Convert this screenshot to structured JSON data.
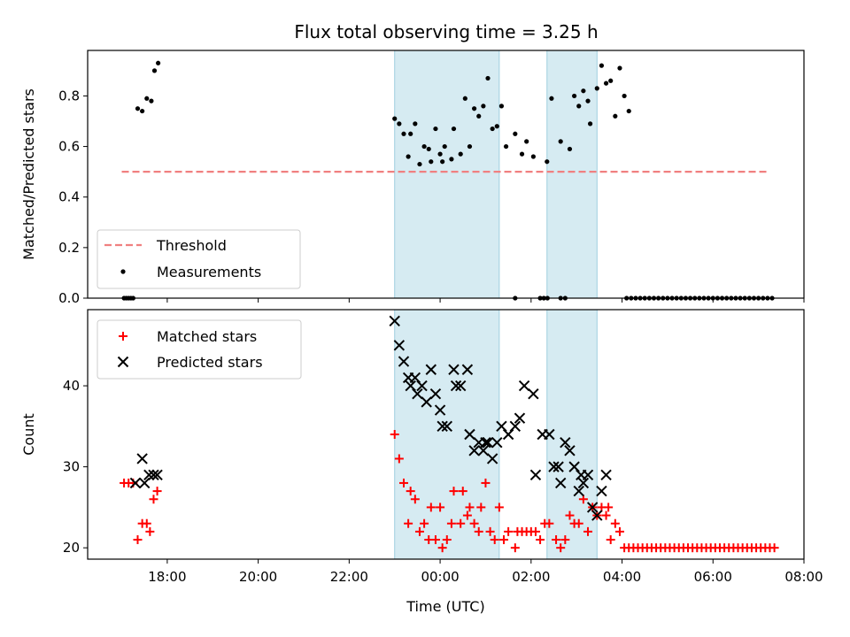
{
  "chart_data": [
    {
      "type": "scatter",
      "title": "Flux total observing time = 3.25 h",
      "ylabel": "Matched/Predicted stars",
      "xlabel": "",
      "ylim": [
        0,
        0.98
      ],
      "yticks": [
        0.0,
        0.2,
        0.4,
        0.6,
        0.8
      ],
      "ytick_labels": [
        "0.0",
        "0.2",
        "0.4",
        "0.6",
        "0.8"
      ],
      "legend_position": "lower-left",
      "threshold": {
        "name": "Threshold",
        "y": 0.5,
        "x_start": 17.0,
        "x_end": 31.25,
        "color": "#f08080"
      },
      "series": [
        {
          "name": "Measurements",
          "color": "#000000",
          "points": [
            [
              17.05,
              0.0
            ],
            [
              17.1,
              0.0
            ],
            [
              17.15,
              0.0
            ],
            [
              17.2,
              0.0
            ],
            [
              17.25,
              0.0
            ],
            [
              17.35,
              0.75
            ],
            [
              17.45,
              0.74
            ],
            [
              17.55,
              0.79
            ],
            [
              17.65,
              0.78
            ],
            [
              17.72,
              0.9
            ],
            [
              17.8,
              0.93
            ],
            [
              23.0,
              0.71
            ],
            [
              23.1,
              0.69
            ],
            [
              23.2,
              0.65
            ],
            [
              23.3,
              0.56
            ],
            [
              23.35,
              0.65
            ],
            [
              23.45,
              0.69
            ],
            [
              23.55,
              0.53
            ],
            [
              23.65,
              0.6
            ],
            [
              23.75,
              0.59
            ],
            [
              23.8,
              0.54
            ],
            [
              23.9,
              0.67
            ],
            [
              24.0,
              0.57
            ],
            [
              24.05,
              0.54
            ],
            [
              24.1,
              0.6
            ],
            [
              24.25,
              0.55
            ],
            [
              24.3,
              0.67
            ],
            [
              24.45,
              0.57
            ],
            [
              24.55,
              0.79
            ],
            [
              24.65,
              0.6
            ],
            [
              24.75,
              0.75
            ],
            [
              24.85,
              0.72
            ],
            [
              24.95,
              0.76
            ],
            [
              25.05,
              0.87
            ],
            [
              25.15,
              0.67
            ],
            [
              25.25,
              0.68
            ],
            [
              25.35,
              0.76
            ],
            [
              25.45,
              0.6
            ],
            [
              25.65,
              0.65
            ],
            [
              25.8,
              0.57
            ],
            [
              25.9,
              0.62
            ],
            [
              26.05,
              0.56
            ],
            [
              26.35,
              0.54
            ],
            [
              26.45,
              0.79
            ],
            [
              26.65,
              0.62
            ],
            [
              26.85,
              0.59
            ],
            [
              26.95,
              0.8
            ],
            [
              27.05,
              0.76
            ],
            [
              27.15,
              0.82
            ],
            [
              27.25,
              0.78
            ],
            [
              27.3,
              0.69
            ],
            [
              27.45,
              0.83
            ],
            [
              27.55,
              0.92
            ],
            [
              27.65,
              0.85
            ],
            [
              27.75,
              0.86
            ],
            [
              27.85,
              0.72
            ],
            [
              27.95,
              0.91
            ],
            [
              28.05,
              0.8
            ],
            [
              28.15,
              0.74
            ],
            [
              25.65,
              0.0
            ],
            [
              26.2,
              0.0
            ],
            [
              26.28,
              0.0
            ],
            [
              26.36,
              0.0
            ],
            [
              26.65,
              0.0
            ],
            [
              26.75,
              0.0
            ],
            [
              28.1,
              0.0
            ],
            [
              28.2,
              0.0
            ],
            [
              28.3,
              0.0
            ],
            [
              28.4,
              0.0
            ],
            [
              28.5,
              0.0
            ],
            [
              28.6,
              0.0
            ],
            [
              28.7,
              0.0
            ],
            [
              28.8,
              0.0
            ],
            [
              28.9,
              0.0
            ],
            [
              29.0,
              0.0
            ],
            [
              29.1,
              0.0
            ],
            [
              29.2,
              0.0
            ],
            [
              29.3,
              0.0
            ],
            [
              29.4,
              0.0
            ],
            [
              29.5,
              0.0
            ],
            [
              29.6,
              0.0
            ],
            [
              29.7,
              0.0
            ],
            [
              29.8,
              0.0
            ],
            [
              29.9,
              0.0
            ],
            [
              30.0,
              0.0
            ],
            [
              30.1,
              0.0
            ],
            [
              30.2,
              0.0
            ],
            [
              30.3,
              0.0
            ],
            [
              30.4,
              0.0
            ],
            [
              30.5,
              0.0
            ],
            [
              30.6,
              0.0
            ],
            [
              30.7,
              0.0
            ],
            [
              30.8,
              0.0
            ],
            [
              30.9,
              0.0
            ],
            [
              31.0,
              0.0
            ],
            [
              31.1,
              0.0
            ],
            [
              31.2,
              0.0
            ],
            [
              31.3,
              0.0
            ]
          ]
        }
      ],
      "shaded_spans": [
        [
          23.0,
          25.3
        ],
        [
          26.35,
          27.45
        ]
      ]
    },
    {
      "type": "scatter",
      "title": "",
      "ylabel": "Count",
      "xlabel": "Time (UTC)",
      "ylim": [
        18.6,
        49.4
      ],
      "yticks": [
        20,
        30,
        40
      ],
      "ytick_labels": [
        "20",
        "30",
        "40"
      ],
      "xlim": [
        16.25,
        32.0
      ],
      "xticks": [
        18,
        20,
        22,
        24,
        26,
        28,
        30,
        32
      ],
      "xtick_labels": [
        "18:00",
        "20:00",
        "22:00",
        "00:00",
        "02:00",
        "04:00",
        "06:00",
        "08:00"
      ],
      "legend_position": "upper-left",
      "series": [
        {
          "name": "Matched stars",
          "marker": "plus",
          "color": "#ff0000",
          "points": [
            [
              17.05,
              28
            ],
            [
              17.15,
              28
            ],
            [
              17.25,
              28
            ],
            [
              17.35,
              21
            ],
            [
              17.45,
              23
            ],
            [
              17.55,
              23
            ],
            [
              17.62,
              22
            ],
            [
              17.7,
              26
            ],
            [
              17.78,
              27
            ],
            [
              23.0,
              34
            ],
            [
              23.1,
              31
            ],
            [
              23.2,
              28
            ],
            [
              23.3,
              23
            ],
            [
              23.35,
              27
            ],
            [
              23.45,
              26
            ],
            [
              23.55,
              22
            ],
            [
              23.65,
              23
            ],
            [
              23.75,
              21
            ],
            [
              23.8,
              25
            ],
            [
              23.9,
              21
            ],
            [
              24.0,
              25
            ],
            [
              24.05,
              20
            ],
            [
              24.15,
              21
            ],
            [
              24.25,
              23
            ],
            [
              24.3,
              27
            ],
            [
              24.45,
              23
            ],
            [
              24.5,
              27
            ],
            [
              24.6,
              24
            ],
            [
              24.65,
              25
            ],
            [
              24.75,
              23
            ],
            [
              24.85,
              22
            ],
            [
              24.9,
              25
            ],
            [
              25.0,
              28
            ],
            [
              25.1,
              22
            ],
            [
              25.2,
              21
            ],
            [
              25.3,
              25
            ],
            [
              25.4,
              21
            ],
            [
              25.5,
              22
            ],
            [
              25.65,
              20
            ],
            [
              25.7,
              22
            ],
            [
              25.8,
              22
            ],
            [
              25.9,
              22
            ],
            [
              26.0,
              22
            ],
            [
              26.1,
              22
            ],
            [
              26.2,
              21
            ],
            [
              26.3,
              23
            ],
            [
              26.4,
              23
            ],
            [
              26.55,
              21
            ],
            [
              26.65,
              20
            ],
            [
              26.75,
              21
            ],
            [
              26.85,
              24
            ],
            [
              26.95,
              23
            ],
            [
              27.05,
              23
            ],
            [
              27.15,
              26
            ],
            [
              27.25,
              22
            ],
            [
              27.35,
              25
            ],
            [
              27.45,
              24
            ],
            [
              27.55,
              25
            ],
            [
              27.65,
              24
            ],
            [
              27.7,
              25
            ],
            [
              27.75,
              21
            ],
            [
              27.85,
              23
            ],
            [
              27.95,
              22
            ],
            [
              28.05,
              20
            ],
            [
              28.15,
              20
            ],
            [
              28.25,
              20
            ],
            [
              28.35,
              20
            ],
            [
              28.45,
              20
            ],
            [
              28.55,
              20
            ],
            [
              28.65,
              20
            ],
            [
              28.75,
              20
            ],
            [
              28.85,
              20
            ],
            [
              28.95,
              20
            ],
            [
              29.05,
              20
            ],
            [
              29.15,
              20
            ],
            [
              29.25,
              20
            ],
            [
              29.35,
              20
            ],
            [
              29.45,
              20
            ],
            [
              29.55,
              20
            ],
            [
              29.65,
              20
            ],
            [
              29.75,
              20
            ],
            [
              29.85,
              20
            ],
            [
              29.95,
              20
            ],
            [
              30.05,
              20
            ],
            [
              30.15,
              20
            ],
            [
              30.25,
              20
            ],
            [
              30.35,
              20
            ],
            [
              30.45,
              20
            ],
            [
              30.55,
              20
            ],
            [
              30.65,
              20
            ],
            [
              30.75,
              20
            ],
            [
              30.85,
              20
            ],
            [
              30.95,
              20
            ],
            [
              31.05,
              20
            ],
            [
              31.15,
              20
            ],
            [
              31.25,
              20
            ],
            [
              31.35,
              20
            ]
          ]
        },
        {
          "name": "Predicted stars",
          "marker": "x",
          "color": "#000000",
          "points": [
            [
              17.3,
              28
            ],
            [
              17.45,
              31
            ],
            [
              17.5,
              28
            ],
            [
              17.6,
              29
            ],
            [
              17.7,
              29
            ],
            [
              17.78,
              29
            ],
            [
              23.0,
              48
            ],
            [
              23.1,
              45
            ],
            [
              23.2,
              43
            ],
            [
              23.3,
              41
            ],
            [
              23.35,
              40
            ],
            [
              23.45,
              41
            ],
            [
              23.5,
              39
            ],
            [
              23.6,
              40
            ],
            [
              23.7,
              38
            ],
            [
              23.8,
              42
            ],
            [
              23.9,
              39
            ],
            [
              24.0,
              37
            ],
            [
              24.05,
              35
            ],
            [
              24.15,
              35
            ],
            [
              24.3,
              42
            ],
            [
              24.35,
              40
            ],
            [
              24.45,
              40
            ],
            [
              24.6,
              42
            ],
            [
              24.65,
              34
            ],
            [
              24.75,
              32
            ],
            [
              24.85,
              33
            ],
            [
              24.95,
              32
            ],
            [
              25.0,
              33
            ],
            [
              25.05,
              33
            ],
            [
              25.15,
              31
            ],
            [
              25.25,
              33
            ],
            [
              25.35,
              35
            ],
            [
              25.5,
              34
            ],
            [
              25.65,
              35
            ],
            [
              25.75,
              36
            ],
            [
              25.85,
              40
            ],
            [
              26.05,
              39
            ],
            [
              26.1,
              29
            ],
            [
              26.25,
              34
            ],
            [
              26.4,
              34
            ],
            [
              26.5,
              30
            ],
            [
              26.6,
              30
            ],
            [
              26.65,
              28
            ],
            [
              26.75,
              33
            ],
            [
              26.85,
              32
            ],
            [
              26.95,
              30
            ],
            [
              27.05,
              27
            ],
            [
              27.1,
              29
            ],
            [
              27.15,
              28
            ],
            [
              27.25,
              29
            ],
            [
              27.35,
              25
            ],
            [
              27.45,
              24
            ],
            [
              27.55,
              27
            ],
            [
              27.65,
              29
            ]
          ]
        }
      ],
      "shaded_spans": [
        [
          23.0,
          25.3
        ],
        [
          26.35,
          27.45
        ]
      ]
    }
  ]
}
